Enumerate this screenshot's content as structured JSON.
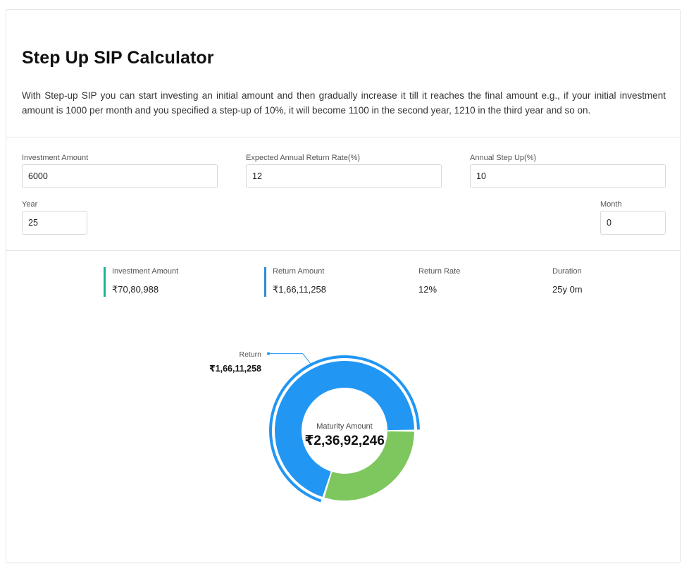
{
  "header": {
    "title": "Step Up SIP Calculator",
    "description": "With Step-up SIP you can start investing an initial amount and then gradually increase it till it reaches the final amount e.g., if your initial investment amount is 1000 per month and you specified a step-up of 10%, it will become 1100 in the second year, 1210 in the third year and so on."
  },
  "form": {
    "investment_amount": {
      "label": "Investment Amount",
      "value": "6000"
    },
    "return_rate": {
      "label": "Expected Annual Return Rate(%)",
      "value": "12"
    },
    "step_up": {
      "label": "Annual Step Up(%)",
      "value": "10"
    },
    "year": {
      "label": "Year",
      "value": "25"
    },
    "month": {
      "label": "Month",
      "value": "0"
    }
  },
  "summary": {
    "investment": {
      "label": "Investment Amount",
      "value": "₹70,80,988"
    },
    "return": {
      "label": "Return Amount",
      "value": "₹1,66,11,258"
    },
    "rate": {
      "label": "Return Rate",
      "value": "12%"
    },
    "duration": {
      "label": "Duration",
      "value": "25y 0m"
    }
  },
  "chart_data": {
    "type": "pie",
    "center_label": "Maturity Amount",
    "center_value": "₹2,36,92,246",
    "slices": [
      {
        "label": "Return",
        "value": 16611258,
        "color": "#2196f3",
        "display": "₹1,66,11,258"
      },
      {
        "value": 7080988,
        "color": "#7ec75f"
      }
    ]
  }
}
